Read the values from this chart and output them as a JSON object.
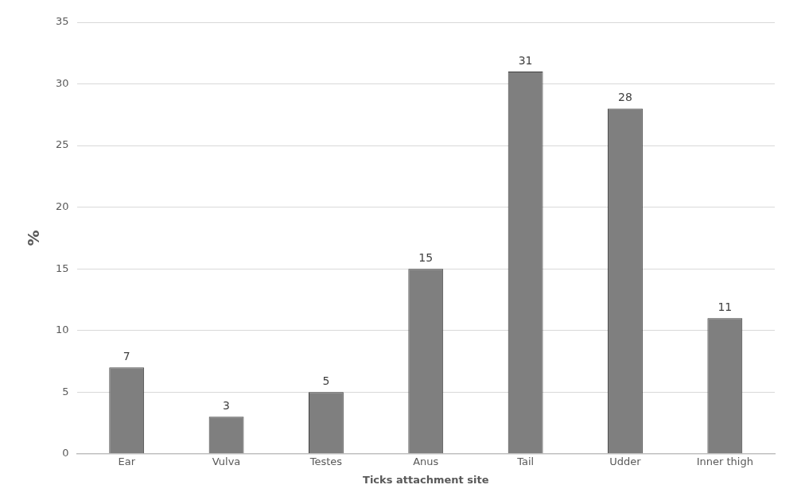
{
  "chart_data": {
    "type": "bar",
    "xlabel": "Ticks attachment site",
    "ylabel": "%",
    "categories": [
      "Ear",
      "Vulva",
      "Testes",
      "Anus",
      "Tail",
      "Udder",
      "Inner thigh"
    ],
    "values": [
      7,
      3,
      5,
      15,
      31,
      28,
      11
    ],
    "color": "#7f7f7f",
    "ylim": [
      0,
      35
    ],
    "yticks": [
      0,
      5,
      10,
      15,
      20,
      25,
      30,
      35
    ],
    "grid": "y",
    "data_labels": true
  }
}
